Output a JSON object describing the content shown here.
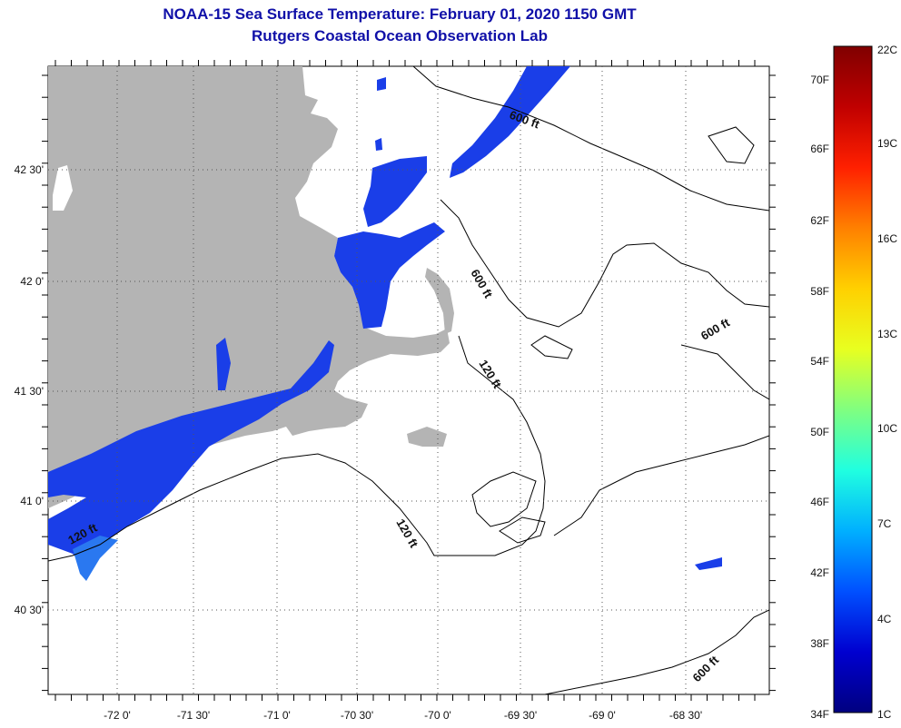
{
  "title": {
    "line1": "NOAA-15 Sea Surface Temperature:  February 01, 2020 1150 GMT",
    "line2": "Rutgers Coastal Ocean Observation Lab"
  },
  "map": {
    "lat_labels": [
      "42 30'",
      "42 0'",
      "41 30'",
      "41 0'",
      "40 30'"
    ],
    "lon_labels": [
      "-72 0'",
      "-71 30'",
      "-71 0'",
      "-70 30'",
      "-70 0'",
      "-69 30'",
      "-69 0'",
      "-68 30'"
    ],
    "contour_labels": [
      "600 ft",
      "600 ft",
      "600 ft",
      "600 ft",
      "120 ft",
      "120 ft",
      "120 ft"
    ],
    "land_color": "#b4b4b4",
    "water_color": "#ffffff",
    "sst_color": "#1a3ee8"
  },
  "colorbar": {
    "fahrenheit_labels": [
      "70F",
      "66F",
      "62F",
      "58F",
      "54F",
      "50F",
      "46F",
      "42F",
      "38F",
      "34F"
    ],
    "celsius_labels": [
      "22C",
      "19C",
      "16C",
      "13C",
      "10C",
      "7C",
      "4C",
      "1C"
    ],
    "colors": [
      "#800000",
      "#c00000",
      "#ff2000",
      "#ff8000",
      "#ffd000",
      "#e8ff20",
      "#80ff80",
      "#20ffe0",
      "#00b0ff",
      "#0050ff",
      "#0000d0",
      "#000080"
    ]
  }
}
